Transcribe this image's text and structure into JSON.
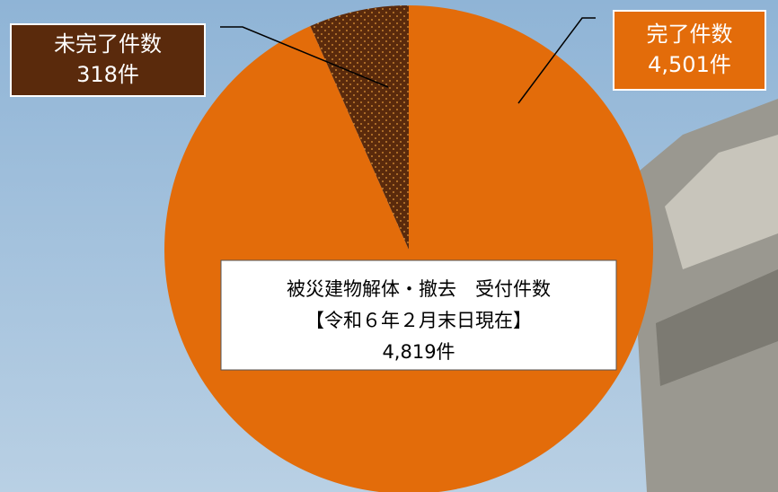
{
  "chart_data": {
    "type": "pie",
    "categories": [
      "完了件数",
      "未完了件数"
    ],
    "values": [
      4501,
      318
    ],
    "value_labels": [
      "4,501件",
      "318件"
    ],
    "colors": [
      "#e36c0a",
      "#5a2a0c"
    ],
    "annotation": [
      "被災建物解体・撤去　受付件数",
      "【令和６年２月末日現在】",
      "4,819件"
    ]
  }
}
